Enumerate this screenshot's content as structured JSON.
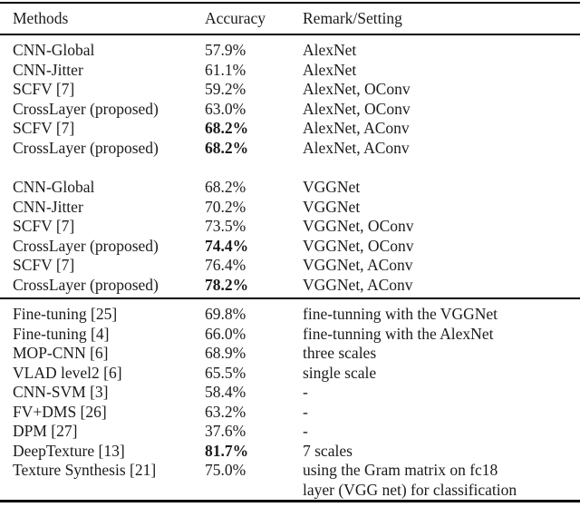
{
  "table": {
    "columns": [
      "Methods",
      "Accuracy",
      "Remark/Setting"
    ],
    "sections": [
      {
        "rows": [
          {
            "method": "CNN-Global",
            "accuracy": "57.9%",
            "accuracy_bold": false,
            "remark": "AlexNet"
          },
          {
            "method": "CNN-Jitter",
            "accuracy": "61.1%",
            "accuracy_bold": false,
            "remark": "AlexNet"
          },
          {
            "method": "SCFV [7]",
            "accuracy": "59.2%",
            "accuracy_bold": false,
            "remark": "AlexNet, OConv"
          },
          {
            "method": "CrossLayer (proposed)",
            "accuracy": "63.0%",
            "accuracy_bold": false,
            "remark": "AlexNet, OConv"
          },
          {
            "method": "SCFV [7]",
            "accuracy": "68.2%",
            "accuracy_bold": true,
            "remark": "AlexNet, AConv"
          },
          {
            "method": "CrossLayer (proposed)",
            "accuracy": "68.2%",
            "accuracy_bold": true,
            "remark": "AlexNet, AConv"
          }
        ]
      },
      {
        "rows": [
          {
            "method": "CNN-Global",
            "accuracy": "68.2%",
            "accuracy_bold": false,
            "remark": "VGGNet"
          },
          {
            "method": "CNN-Jitter",
            "accuracy": "70.2%",
            "accuracy_bold": false,
            "remark": "VGGNet"
          },
          {
            "method": "SCFV [7]",
            "accuracy": "73.5%",
            "accuracy_bold": false,
            "remark": "VGGNet, OConv"
          },
          {
            "method": "CrossLayer (proposed)",
            "accuracy": "74.4%",
            "accuracy_bold": true,
            "remark": "VGGNet, OConv"
          },
          {
            "method": "SCFV [7]",
            "accuracy": "76.4%",
            "accuracy_bold": false,
            "remark": "VGGNet, AConv"
          },
          {
            "method": "CrossLayer (proposed)",
            "accuracy": "78.2%",
            "accuracy_bold": true,
            "remark": "VGGNet, AConv"
          }
        ]
      },
      {
        "rows": [
          {
            "method": "Fine-tuning [25]",
            "accuracy": "69.8%",
            "accuracy_bold": false,
            "remark": "fine-tunning with the VGGNet"
          },
          {
            "method": "Fine-tuning [4]",
            "accuracy": "66.0%",
            "accuracy_bold": false,
            "remark": "fine-tunning with the AlexNet"
          },
          {
            "method": "MOP-CNN [6]",
            "accuracy": "68.9%",
            "accuracy_bold": false,
            "remark": "three scales"
          },
          {
            "method": "VLAD level2 [6]",
            "accuracy": "65.5%",
            "accuracy_bold": false,
            "remark": "single scale"
          },
          {
            "method": "CNN-SVM [3]",
            "accuracy": "58.4%",
            "accuracy_bold": false,
            "remark": "-"
          },
          {
            "method": "FV+DMS [26]",
            "accuracy": "63.2%",
            "accuracy_bold": false,
            "remark": "-"
          },
          {
            "method": "DPM [27]",
            "accuracy": "37.6%",
            "accuracy_bold": false,
            "remark": "-"
          },
          {
            "method": "DeepTexture [13]",
            "accuracy": "81.7%",
            "accuracy_bold": true,
            "remark": "7 scales"
          },
          {
            "method": "Texture Synthesis [21]",
            "accuracy": "75.0%",
            "accuracy_bold": false,
            "remark": "using the Gram matrix on fc18\nlayer (VGG net) for classification"
          }
        ]
      }
    ]
  },
  "colors": {
    "text": "#1b1b1b",
    "rule": "#000000",
    "background": "#ffffff"
  }
}
